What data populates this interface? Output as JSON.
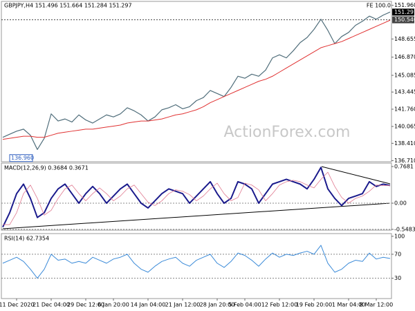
{
  "chart_data": [
    {
      "type": "line",
      "title": "GBPJPY,H4 151.496 151.664 151.284 151.297",
      "annotation": "FE 100.0",
      "watermark": "ActionForex.com",
      "ylim": [
        136.6,
        152.35
      ],
      "yticks": [
        {
          "value": 151.96,
          "label": "151.960"
        },
        {
          "value": 148.655,
          "label": "148.655"
        },
        {
          "value": 146.87,
          "label": "146.870"
        },
        {
          "value": 145.085,
          "label": "145.085"
        },
        {
          "value": 143.445,
          "label": "143.445"
        },
        {
          "value": 141.76,
          "label": "141.760"
        },
        {
          "value": 140.065,
          "label": "140.065"
        },
        {
          "value": 138.41,
          "label": "138.410"
        },
        {
          "value": 136.71,
          "label": "136.710"
        }
      ],
      "levels": [
        {
          "value": 151.297,
          "label": "151.297",
          "color": "#000000",
          "dashed": false
        },
        {
          "value": 150.54,
          "label": "150.540",
          "color": "#444444",
          "dashed": true
        }
      ],
      "low_marker": {
        "value": 136.96,
        "label": "136.960"
      },
      "series": [
        {
          "name": "Price",
          "color": "#4f6d7a",
          "width": 1.2,
          "values": [
            139.0,
            139.3,
            139.6,
            139.8,
            139.2,
            137.8,
            138.9,
            141.3,
            140.6,
            140.8,
            140.5,
            141.2,
            140.7,
            140.4,
            140.8,
            141.2,
            141.0,
            141.3,
            141.9,
            141.6,
            141.2,
            140.6,
            141.0,
            141.7,
            141.9,
            142.2,
            141.8,
            142.0,
            142.6,
            142.9,
            143.6,
            143.3,
            143.0,
            143.9,
            145.0,
            144.8,
            145.2,
            145.0,
            145.6,
            146.8,
            147.1,
            146.8,
            147.5,
            148.3,
            148.8,
            149.6,
            150.6,
            149.5,
            148.2,
            148.9,
            149.3,
            150.0,
            150.4,
            150.9,
            150.6,
            151.0,
            151.3
          ]
        },
        {
          "name": "MA",
          "color": "#e03030",
          "width": 1,
          "values": [
            138.8,
            138.9,
            139.0,
            139.1,
            139.1,
            139.0,
            139.0,
            139.2,
            139.4,
            139.5,
            139.6,
            139.7,
            139.8,
            139.8,
            139.9,
            140.0,
            140.1,
            140.2,
            140.4,
            140.5,
            140.6,
            140.6,
            140.7,
            140.8,
            141.0,
            141.2,
            141.3,
            141.5,
            141.7,
            142.0,
            142.4,
            142.7,
            143.0,
            143.3,
            143.6,
            143.9,
            144.2,
            144.5,
            144.7,
            145.0,
            145.4,
            145.8,
            146.2,
            146.6,
            147.0,
            147.4,
            147.8,
            148.0,
            148.2,
            148.4,
            148.7,
            149.0,
            149.3,
            149.6,
            149.9,
            150.2,
            150.5
          ]
        }
      ]
    },
    {
      "type": "line",
      "title": "MACD(12,26,9) 0.3684 0.3671",
      "ylim": [
        -0.565,
        0.84
      ],
      "yticks": [
        0.7681,
        {
          "value": 0,
          "label": "0.00"
        },
        -0.5483
      ],
      "series": [
        {
          "name": "MACD",
          "color": "#1a1a8c",
          "width": 2,
          "values": [
            -0.5,
            -0.2,
            0.2,
            0.4,
            0.1,
            -0.3,
            -0.2,
            0.1,
            0.3,
            0.4,
            0.2,
            0.0,
            0.2,
            0.35,
            0.2,
            0.0,
            0.15,
            0.3,
            0.4,
            0.2,
            0.0,
            -0.1,
            0.05,
            0.2,
            0.3,
            0.25,
            0.2,
            0.0,
            0.15,
            0.3,
            0.45,
            0.2,
            0.0,
            0.1,
            0.45,
            0.4,
            0.3,
            0.0,
            0.2,
            0.4,
            0.45,
            0.5,
            0.45,
            0.4,
            0.3,
            0.5,
            0.75,
            0.3,
            0.1,
            -0.05,
            0.1,
            0.15,
            0.2,
            0.45,
            0.35,
            0.4,
            0.37
          ]
        },
        {
          "name": "Signal",
          "color": "#e07a90",
          "width": 0.8,
          "values": [
            -0.45,
            -0.45,
            -0.2,
            0.2,
            0.38,
            0.1,
            -0.25,
            -0.15,
            0.1,
            0.3,
            0.38,
            0.2,
            0.05,
            0.2,
            0.32,
            0.2,
            0.05,
            0.15,
            0.3,
            0.38,
            0.2,
            0.02,
            -0.05,
            0.05,
            0.2,
            0.28,
            0.25,
            0.18,
            0.05,
            0.15,
            0.3,
            0.42,
            0.2,
            0.05,
            0.12,
            0.42,
            0.38,
            0.28,
            0.05,
            0.2,
            0.38,
            0.45,
            0.48,
            0.45,
            0.38,
            0.32,
            0.5,
            0.65,
            0.35,
            0.12,
            0.0,
            0.1,
            0.15,
            0.25,
            0.38,
            0.37,
            0.37
          ]
        }
      ]
    },
    {
      "type": "line",
      "title": "RSI(14) 62.7354",
      "ylim": [
        -4,
        104.5
      ],
      "yticks": [
        100,
        70,
        30
      ],
      "categories": [
        null,
        null,
        "11 Dec 2020",
        null,
        null,
        null,
        null,
        "21 Dec 04:00",
        null,
        null,
        null,
        null,
        "29 Dec 12:00",
        null,
        null,
        null,
        "6 Jan 20:00",
        null,
        null,
        null,
        null,
        "14 Jan 04:00",
        null,
        null,
        null,
        null,
        "21 Jan 12:00",
        null,
        null,
        null,
        null,
        "28 Jan 20:00",
        null,
        null,
        null,
        "5 Feb 04:00",
        null,
        null,
        null,
        null,
        "12 Feb 12:00",
        null,
        null,
        null,
        null,
        "19 Feb 20:00",
        null,
        null,
        null,
        null,
        "1 Mar 04:00",
        null,
        null,
        null,
        "8 Mar 12:00",
        null,
        null
      ],
      "series": [
        {
          "name": "RSI",
          "color": "#3a8ad8",
          "width": 1,
          "values": [
            55,
            60,
            65,
            58,
            45,
            30,
            45,
            70,
            60,
            62,
            55,
            58,
            55,
            65,
            60,
            55,
            62,
            65,
            70,
            55,
            45,
            40,
            50,
            58,
            62,
            65,
            55,
            50,
            60,
            65,
            70,
            55,
            48,
            58,
            72,
            68,
            60,
            50,
            62,
            72,
            65,
            70,
            68,
            72,
            75,
            70,
            85,
            55,
            40,
            45,
            55,
            60,
            58,
            72,
            62,
            65,
            63
          ]
        }
      ]
    }
  ]
}
